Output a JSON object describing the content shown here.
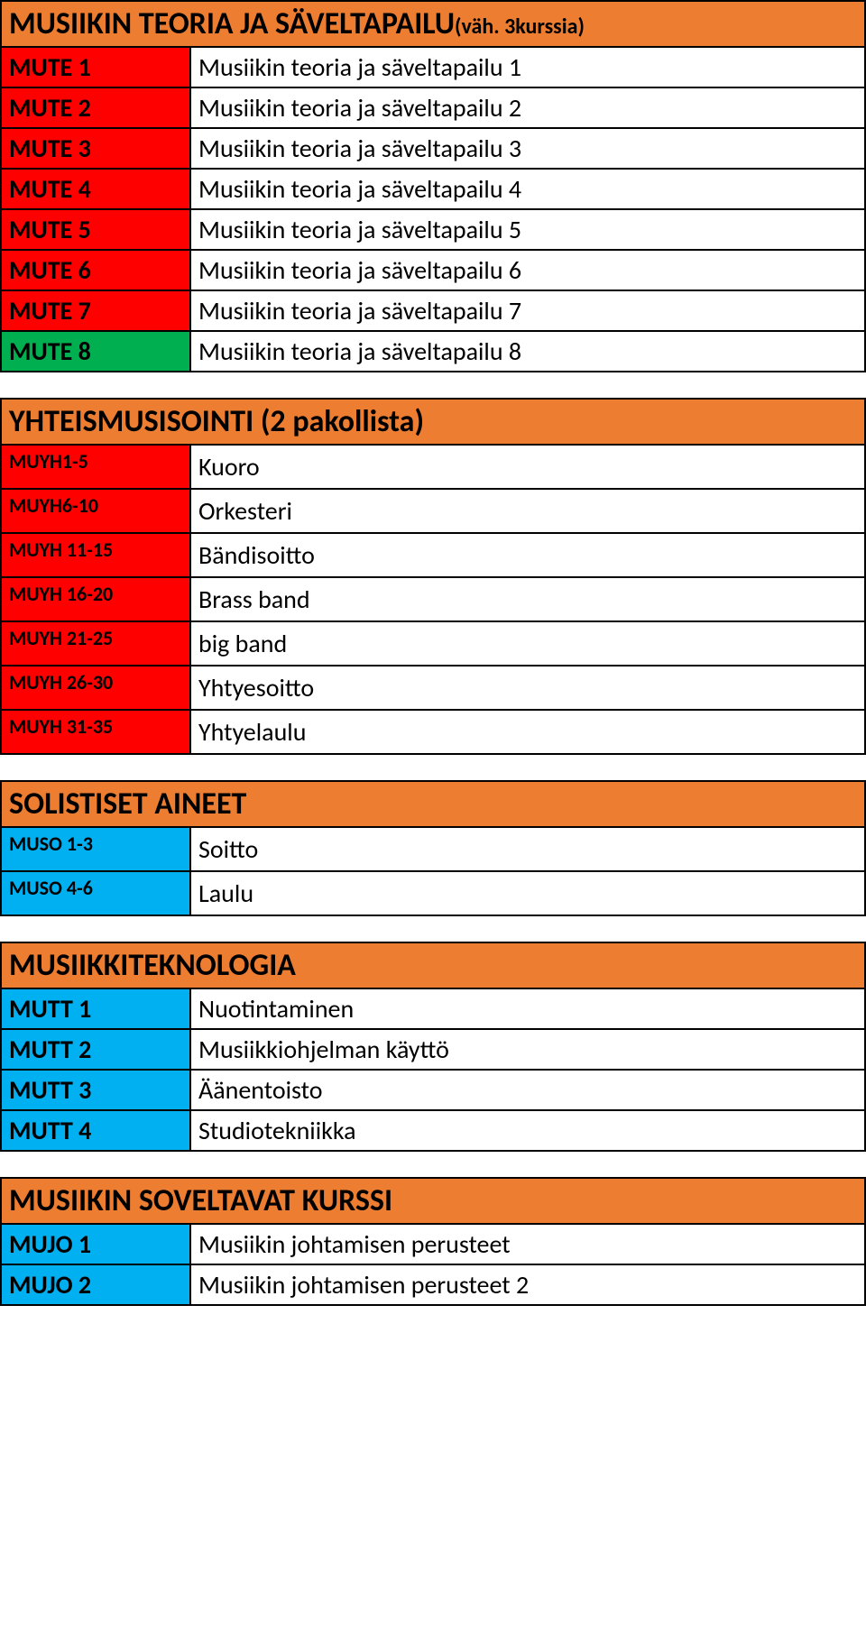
{
  "colors": {
    "orange": "#ed7d31",
    "red": "#ff0000",
    "green": "#00b050",
    "blue": "#00b0f0",
    "white": "#ffffff",
    "black": "#000000"
  },
  "fonts": {
    "header_main_size": 34,
    "header_sub_size": 24,
    "code_size": 28,
    "code_small_size": 22,
    "desc_size": 28
  },
  "sections": [
    {
      "id": "mute",
      "header_main": "MUSIIKIN TEORIA  JA SÄVELTAPAILU",
      "header_sub": "(väh. 3kurssia)",
      "rows": [
        {
          "code": "MUTE 1",
          "desc": "Musiikin teoria ja säveltapailu 1",
          "code_bg": "#ff0000",
          "code_small": false
        },
        {
          "code": "MUTE 2",
          "desc": "Musiikin teoria ja säveltapailu 2",
          "code_bg": "#ff0000",
          "code_small": false
        },
        {
          "code": "MUTE 3",
          "desc": "Musiikin teoria ja säveltapailu 3",
          "code_bg": "#ff0000",
          "code_small": false
        },
        {
          "code": "MUTE 4",
          "desc": "Musiikin teoria ja säveltapailu 4",
          "code_bg": "#ff0000",
          "code_small": false
        },
        {
          "code": "MUTE 5",
          "desc": "Musiikin teoria ja säveltapailu 5",
          "code_bg": "#ff0000",
          "code_small": false
        },
        {
          "code": "MUTE 6",
          "desc": "Musiikin teoria ja säveltapailu 6",
          "code_bg": "#ff0000",
          "code_small": false
        },
        {
          "code": "MUTE 7",
          "desc": "Musiikin teoria ja säveltapailu 7",
          "code_bg": "#ff0000",
          "code_small": false
        },
        {
          "code": "MUTE 8",
          "desc": "Musiikin teoria ja säveltapailu 8",
          "code_bg": "#00b050",
          "code_small": false
        }
      ]
    },
    {
      "id": "muyh",
      "header_main": "YHTEISMUSISOINTI (2 pakollista)",
      "header_sub": "",
      "rows": [
        {
          "code": "MUYH1-5",
          "desc": "Kuoro",
          "code_bg": "#ff0000",
          "code_small": true
        },
        {
          "code": "MUYH6-10",
          "desc": "Orkesteri",
          "code_bg": "#ff0000",
          "code_small": true
        },
        {
          "code": "MUYH 11-15",
          "desc": "Bändisoitto",
          "code_bg": "#ff0000",
          "code_small": true
        },
        {
          "code": "MUYH 16-20",
          "desc": "Brass band",
          "code_bg": "#ff0000",
          "code_small": true
        },
        {
          "code": "MUYH 21-25",
          "desc": "big band",
          "code_bg": "#ff0000",
          "code_small": true
        },
        {
          "code": "MUYH 26-30",
          "desc": "Yhtyesoitto",
          "code_bg": "#ff0000",
          "code_small": true
        },
        {
          "code": "MUYH 31-35",
          "desc": "Yhtyelaulu",
          "code_bg": "#ff0000",
          "code_small": true
        }
      ]
    },
    {
      "id": "muso",
      "header_main": "SOLISTISET AINEET",
      "header_sub": "",
      "rows": [
        {
          "code": "MUSO 1-3",
          "desc": "Soitto",
          "code_bg": "#00b0f0",
          "code_small": true
        },
        {
          "code": "MUSO 4-6",
          "desc": "Laulu",
          "code_bg": "#00b0f0",
          "code_small": true
        }
      ]
    },
    {
      "id": "mutt",
      "header_main": "MUSIIKKITEKNOLOGIA",
      "header_sub": "",
      "rows": [
        {
          "code": "MUTT 1",
          "desc": "Nuotintaminen",
          "code_bg": "#00b0f0",
          "code_small": false
        },
        {
          "code": "MUTT 2",
          "desc": "Musiikkiohjelman käyttö",
          "code_bg": "#00b0f0",
          "code_small": false
        },
        {
          "code": "MUTT 3",
          "desc": "Äänentoisto",
          "code_bg": "#00b0f0",
          "code_small": false
        },
        {
          "code": "MUTT 4",
          "desc": "Studiotekniikka",
          "code_bg": "#00b0f0",
          "code_small": false
        }
      ]
    },
    {
      "id": "mujo",
      "header_main": "MUSIIKIN SOVELTAVAT KURSSI",
      "header_sub": "",
      "rows": [
        {
          "code": "MUJO 1",
          "desc": "Musiikin johtamisen perusteet",
          "code_bg": "#00b0f0",
          "code_small": false
        },
        {
          "code": "MUJO 2",
          "desc": "Musiikin johtamisen perusteet 2",
          "code_bg": "#00b0f0",
          "code_small": false
        }
      ]
    }
  ]
}
